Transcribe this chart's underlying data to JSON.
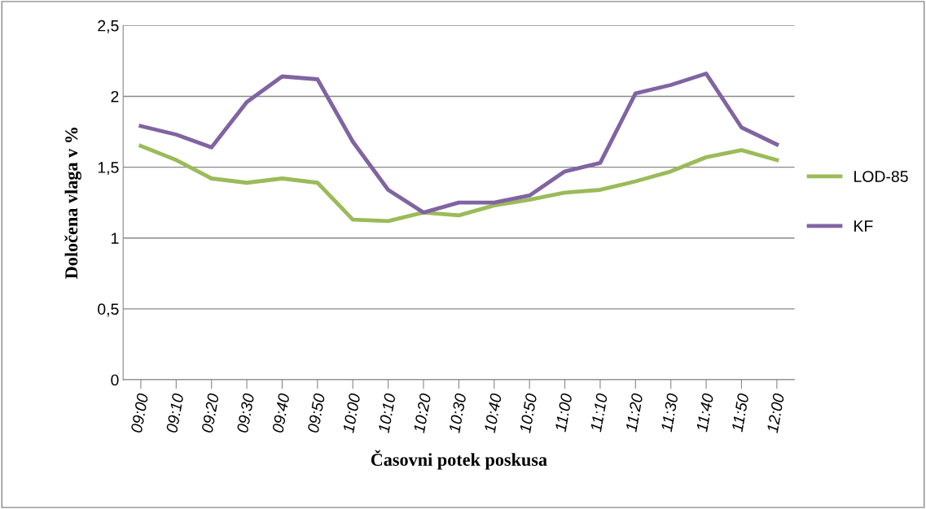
{
  "chart_data": {
    "type": "line",
    "xlabel": "Časovni potek poskusa",
    "ylabel": "Določena vlaga v %",
    "categories": [
      "09:00",
      "09:10",
      "09:20",
      "09:30",
      "09:40",
      "09:50",
      "10:00",
      "10:10",
      "10:20",
      "10:30",
      "10:40",
      "10:50",
      "11:00",
      "11:10",
      "11:20",
      "11:30",
      "11:40",
      "11:50",
      "12:00"
    ],
    "series": [
      {
        "name": "LOD-85",
        "color": "#9bbb59",
        "values": [
          1.65,
          1.55,
          1.42,
          1.39,
          1.42,
          1.39,
          1.13,
          1.12,
          1.18,
          1.16,
          1.23,
          1.27,
          1.32,
          1.34,
          1.4,
          1.47,
          1.57,
          1.62,
          1.55
        ]
      },
      {
        "name": "KF",
        "color": "#8064a2",
        "values": [
          1.79,
          1.73,
          1.64,
          1.96,
          2.14,
          2.12,
          1.68,
          1.34,
          1.18,
          1.25,
          1.25,
          1.3,
          1.47,
          1.53,
          2.02,
          2.08,
          2.16,
          1.78,
          1.66
        ]
      }
    ],
    "ylim": [
      0,
      2.5
    ],
    "yticks": [
      0,
      {
        "value": 0.5,
        "label": "0,5"
      },
      1,
      {
        "value": 1.5,
        "label": "1,5"
      },
      2,
      {
        "value": 2.5,
        "label": "2,5"
      }
    ],
    "grid": "y",
    "legend": "right",
    "marker": "none",
    "line_style": "solid"
  }
}
